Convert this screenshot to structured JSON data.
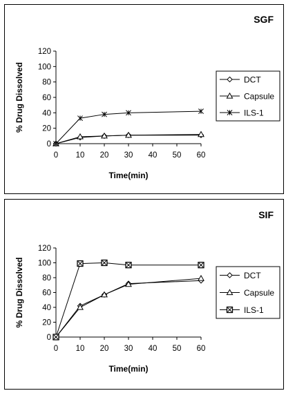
{
  "chart_data": [
    {
      "type": "line",
      "title": "SGF",
      "xlabel": "Time(min)",
      "ylabel": "% Drug Dissolved",
      "x": [
        0,
        10,
        20,
        30,
        60
      ],
      "xticks": [
        0,
        10,
        20,
        30,
        40,
        50,
        60
      ],
      "yticks": [
        0,
        20,
        40,
        60,
        80,
        100,
        120
      ],
      "xlim": [
        0,
        60
      ],
      "ylim": [
        0,
        120
      ],
      "grid": false,
      "legend_position": "right",
      "series": [
        {
          "name": "DCT",
          "marker": "diamond",
          "values": [
            0,
            8,
            10,
            11,
            11
          ]
        },
        {
          "name": "Capsule",
          "marker": "triangle",
          "values": [
            0,
            9,
            10,
            11,
            12
          ]
        },
        {
          "name": "ILS-1",
          "marker": "star",
          "values": [
            0,
            33,
            38,
            40,
            42
          ]
        }
      ]
    },
    {
      "type": "line",
      "title": "SIF",
      "xlabel": "Time(min)",
      "ylabel": "% Drug Dissolved",
      "x": [
        0,
        10,
        20,
        30,
        60
      ],
      "xticks": [
        0,
        10,
        20,
        30,
        40,
        50,
        60
      ],
      "yticks": [
        0,
        20,
        40,
        60,
        80,
        100,
        120
      ],
      "xlim": [
        0,
        60
      ],
      "ylim": [
        0,
        120
      ],
      "grid": false,
      "legend_position": "right",
      "series": [
        {
          "name": "DCT",
          "marker": "diamond",
          "values": [
            0,
            42,
            57,
            72,
            76
          ]
        },
        {
          "name": "Capsule",
          "marker": "triangle",
          "values": [
            0,
            40,
            57,
            71,
            79
          ]
        },
        {
          "name": "ILS-1",
          "marker": "boxx",
          "values": [
            0,
            99,
            100,
            97,
            97
          ]
        }
      ]
    }
  ]
}
